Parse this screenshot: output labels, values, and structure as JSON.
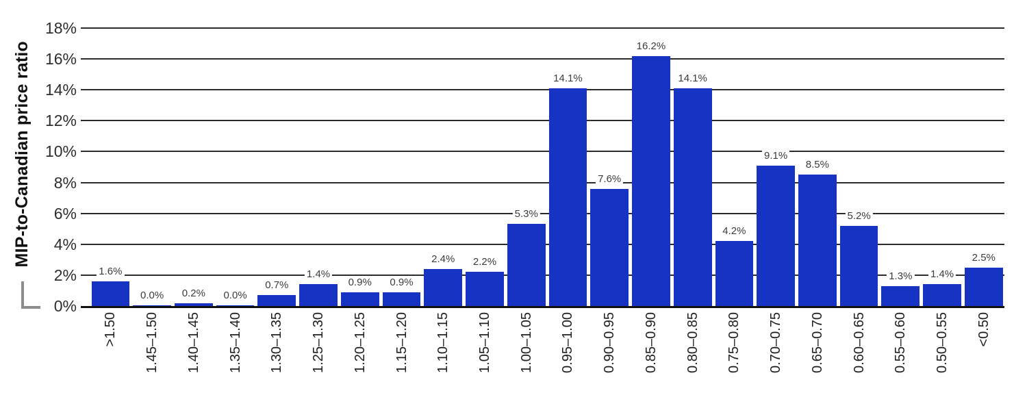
{
  "chart_data": {
    "type": "bar",
    "title": "",
    "xlabel": "",
    "ylabel": "MIP-to-Canadian price ratio",
    "ylim": [
      0,
      18
    ],
    "y_tick_step": 2,
    "y_ticks": [
      "0%",
      "2%",
      "4%",
      "6%",
      "8%",
      "10%",
      "12%",
      "14%",
      "16%",
      "18%"
    ],
    "grid": true,
    "legend": false,
    "bar_color": "#1733c4",
    "gridline_color": "#2b2b2b",
    "categories": [
      ">1.50",
      "1.45–1.50",
      "1.40–1.45",
      "1.35–1.40",
      "1.30–1.35",
      "1.25–1.30",
      "1.20–1.25",
      "1.15–1.20",
      "1.10–1.15",
      "1.05–1.10",
      "1.00–1.05",
      "0.95–1.00",
      "0.90–0.95",
      "0.85–0.90",
      "0.80–0.85",
      "0.75–0.80",
      "0.70–0.75",
      "0.65–0.70",
      "0.60–0.65",
      "0.55–0.60",
      "0.50–0.55",
      "<0.50"
    ],
    "values": [
      1.6,
      0.0,
      0.2,
      0.0,
      0.7,
      1.4,
      0.9,
      0.9,
      2.4,
      2.2,
      5.3,
      14.1,
      7.6,
      16.2,
      14.1,
      4.2,
      9.1,
      8.5,
      5.2,
      1.3,
      1.4,
      2.5
    ],
    "data_labels": [
      "1.6%",
      "0.0%",
      "0.2%",
      "0.0%",
      "0.7%",
      "1.4%",
      "0.9%",
      "0.9%",
      "2.4%",
      "2.2%",
      "5.3%",
      "14.1%",
      "7.6%",
      "16.2%",
      "14.1%",
      "4.2%",
      "9.1%",
      "8.5%",
      "5.2%",
      "1.3%",
      "1.4%",
      "2.5%"
    ]
  }
}
